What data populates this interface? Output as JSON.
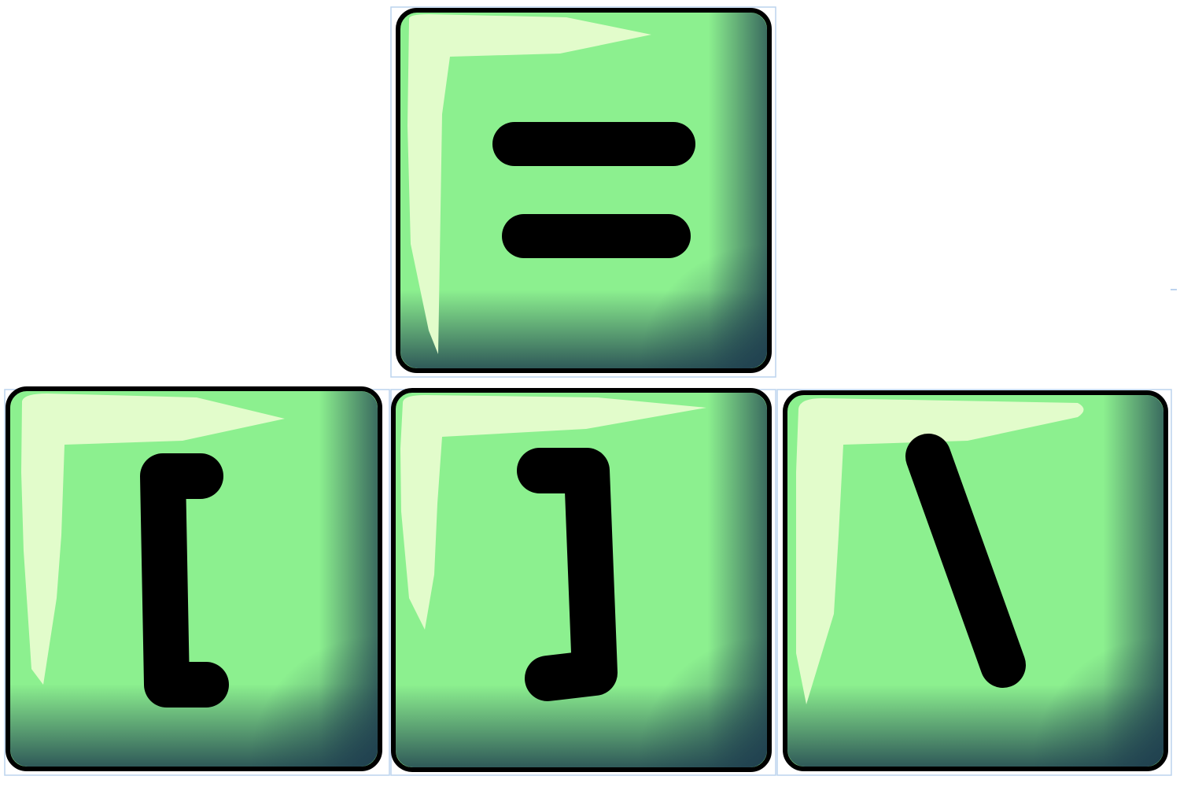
{
  "keys": [
    {
      "name": "equals-key",
      "symbol": "="
    },
    {
      "name": "left-bracket-key",
      "symbol": "["
    },
    {
      "name": "right-bracket-key",
      "symbol": "]"
    },
    {
      "name": "backslash-key",
      "symbol": "\\"
    }
  ],
  "colors": {
    "key_face": "#8cf08f",
    "key_highlight": "#e2fccb",
    "key_shadow": "#1f3f4f",
    "key_outline": "#000000",
    "glyph": "#000000",
    "selection_frame": "#bcd3ee"
  }
}
